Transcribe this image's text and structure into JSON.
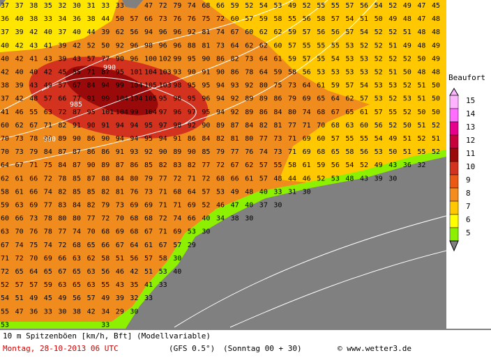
{
  "map": {
    "grid": {
      "rows": [
        [
          37,
          37,
          38,
          35,
          32,
          30,
          31,
          33,
          33,
          null,
          47,
          72,
          79,
          74,
          68,
          66,
          59,
          52,
          54,
          53,
          49,
          52,
          55,
          55,
          57,
          56,
          54,
          52,
          49,
          47,
          45
        ],
        [
          36,
          40,
          38,
          33,
          34,
          36,
          38,
          44,
          50,
          57,
          66,
          73,
          76,
          76,
          75,
          72,
          60,
          57,
          59,
          58,
          55,
          56,
          58,
          57,
          54,
          51,
          50,
          49,
          48,
          47,
          48
        ],
        [
          37,
          39,
          42,
          40,
          37,
          40,
          44,
          39,
          62,
          56,
          94,
          96,
          96,
          92,
          81,
          74,
          67,
          60,
          62,
          62,
          59,
          57,
          56,
          56,
          57,
          54,
          52,
          52,
          51,
          48,
          48
        ],
        [
          40,
          42,
          43,
          41,
          39,
          42,
          52,
          50,
          92,
          96,
          98,
          96,
          96,
          88,
          81,
          73,
          64,
          62,
          62,
          60,
          57,
          55,
          55,
          55,
          53,
          52,
          52,
          51,
          49,
          48,
          49
        ],
        [
          40,
          42,
          41,
          43,
          39,
          43,
          57,
          77,
          90,
          96,
          100,
          102,
          99,
          95,
          90,
          86,
          82,
          73,
          64,
          61,
          59,
          57,
          55,
          54,
          53,
          53,
          52,
          52,
          52,
          50,
          49
        ],
        [
          42,
          40,
          40,
          42,
          45,
          55,
          71,
          87,
          95,
          101,
          104,
          103,
          93,
          90,
          91,
          90,
          86,
          78,
          64,
          59,
          58,
          56,
          53,
          53,
          53,
          53,
          52,
          51,
          50,
          48,
          48
        ],
        [
          38,
          39,
          43,
          49,
          57,
          67,
          84,
          94,
          99,
          104,
          105,
          103,
          98,
          95,
          95,
          94,
          93,
          92,
          80,
          75,
          73,
          64,
          61,
          59,
          57,
          54,
          53,
          53,
          52,
          51,
          50
        ],
        [
          37,
          42,
          48,
          57,
          66,
          77,
          91,
          99,
          104,
          104,
          105,
          95,
          96,
          95,
          96,
          94,
          92,
          89,
          89,
          86,
          79,
          69,
          65,
          64,
          62,
          57,
          53,
          52,
          53,
          51,
          50
        ],
        [
          41,
          46,
          55,
          63,
          72,
          87,
          95,
          101,
          104,
          99,
          104,
          97,
          96,
          97,
          95,
          94,
          92,
          89,
          86,
          84,
          80,
          74,
          68,
          67,
          65,
          61,
          57,
          55,
          52,
          50,
          50
        ],
        [
          60,
          62,
          67,
          71,
          82,
          91,
          90,
          91,
          94,
          94,
          95,
          97,
          98,
          92,
          90,
          89,
          87,
          84,
          82,
          81,
          77,
          71,
          70,
          68,
          63,
          60,
          56,
          52,
          50,
          51,
          52
        ],
        [
          70,
          73,
          78,
          86,
          89,
          90,
          86,
          90,
          94,
          94,
          95,
          94,
          91,
          86,
          84,
          82,
          81,
          80,
          77,
          73,
          71,
          69,
          60,
          57,
          55,
          55,
          54,
          49,
          51,
          52,
          51
        ],
        [
          70,
          73,
          79,
          84,
          87,
          87,
          86,
          86,
          91,
          93,
          92,
          90,
          89,
          90,
          85,
          79,
          77,
          76,
          74,
          73,
          71,
          69,
          68,
          65,
          58,
          56,
          53,
          50,
          51,
          55,
          52
        ],
        [
          64,
          67,
          71,
          75,
          84,
          87,
          90,
          89,
          87,
          86,
          85,
          82,
          83,
          82,
          77,
          72,
          67,
          62,
          57,
          55,
          58,
          61,
          59,
          56,
          54,
          52,
          49,
          43,
          36,
          32
        ],
        [
          62,
          61,
          66,
          72,
          78,
          85,
          87,
          88,
          84,
          80,
          79,
          77,
          72,
          71,
          72,
          68,
          66,
          61,
          57,
          48,
          44,
          46,
          52,
          53,
          48,
          43,
          39,
          30
        ],
        [
          58,
          61,
          66,
          74,
          82,
          85,
          85,
          82,
          81,
          76,
          73,
          71,
          68,
          64,
          57,
          53,
          49,
          48,
          40,
          33,
          31,
          30
        ],
        [
          59,
          63,
          69,
          77,
          83,
          84,
          82,
          79,
          73,
          69,
          69,
          71,
          71,
          69,
          52,
          46,
          47,
          40,
          37,
          30
        ],
        [
          60,
          66,
          73,
          78,
          80,
          80,
          77,
          72,
          70,
          68,
          68,
          72,
          74,
          66,
          40,
          34,
          38,
          30
        ],
        [
          63,
          70,
          76,
          78,
          77,
          74,
          70,
          68,
          69,
          68,
          67,
          71,
          69,
          53,
          30
        ],
        [
          67,
          74,
          75,
          74,
          72,
          68,
          65,
          66,
          67,
          64,
          61,
          67,
          57,
          29
        ],
        [
          71,
          72,
          70,
          69,
          66,
          63,
          62,
          58,
          51,
          56,
          57,
          58,
          30
        ],
        [
          72,
          65,
          64,
          65,
          67,
          65,
          63,
          56,
          46,
          42,
          51,
          53,
          40
        ],
        [
          52,
          57,
          57,
          59,
          63,
          65,
          63,
          55,
          43,
          35,
          41,
          33
        ],
        [
          54,
          51,
          49,
          45,
          49,
          56,
          57,
          49,
          39,
          32,
          33
        ],
        [
          55,
          47,
          36,
          33,
          30,
          38,
          42,
          34,
          29,
          30
        ],
        [
          53,
          null,
          null,
          null,
          null,
          null,
          null,
          33
        ]
      ],
      "isobars": [
        "990",
        "985",
        "990"
      ]
    },
    "legend": {
      "title": "Beaufort",
      "levels": [
        {
          "label": "15",
          "color": "#ffb4ff"
        },
        {
          "label": "14",
          "color": "#ff6eff"
        },
        {
          "label": "13",
          "color": "#e6008c"
        },
        {
          "label": "12",
          "color": "#c8003c"
        },
        {
          "label": "11",
          "color": "#9b0a0a"
        },
        {
          "label": "10",
          "color": "#d2321e"
        },
        {
          "label": "9",
          "color": "#eb5a14"
        },
        {
          "label": "8",
          "color": "#f58c1e"
        },
        {
          "label": "7",
          "color": "#ffc800"
        },
        {
          "label": "6",
          "color": "#ffff00"
        },
        {
          "label": "5",
          "color": "#8cf000"
        }
      ]
    },
    "footer": {
      "title": "10 m Spitzenböen [km/h, Bft] (Modellvariable)",
      "date": "Montag, 28-10-2013  06 UTC",
      "model": "(GFS 0.5°)",
      "run": "(Sonntag 00 + 30)",
      "credit": "© www.wetter3.de"
    }
  }
}
